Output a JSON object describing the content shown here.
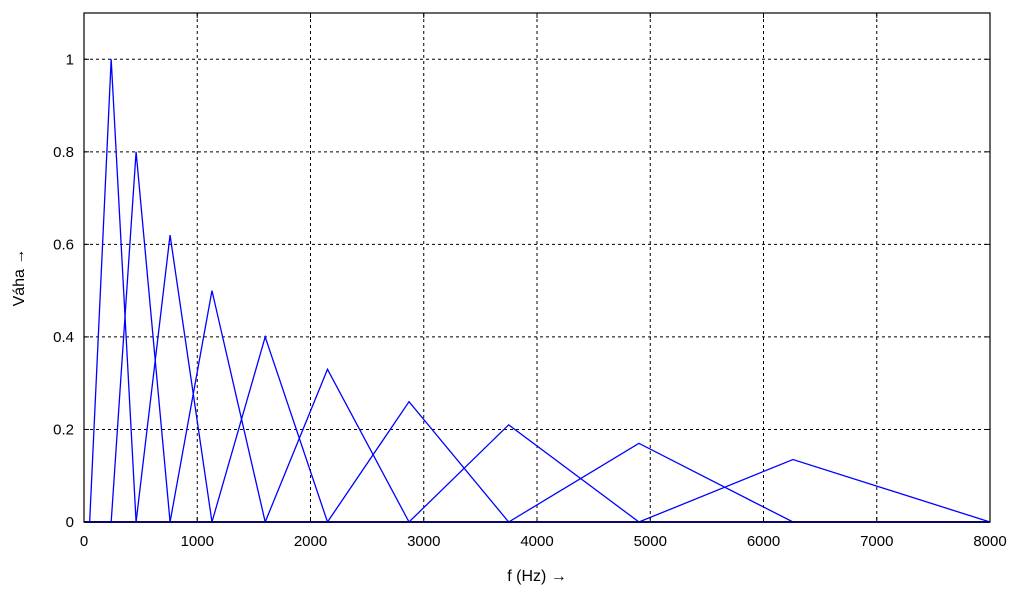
{
  "chart_data": {
    "type": "line",
    "title": "",
    "xlabel": "f (Hz) →",
    "ylabel": "Váha →",
    "xlim": [
      0,
      8000
    ],
    "ylim": [
      0,
      1.1
    ],
    "grid": true,
    "x_ticks": [
      0,
      1000,
      2000,
      3000,
      4000,
      5000,
      6000,
      7000,
      8000
    ],
    "x_tick_labels": [
      "0",
      "1000",
      "2000",
      "3000",
      "4000",
      "5000",
      "6000",
      "7000",
      "8000"
    ],
    "y_ticks": [
      0,
      0.2,
      0.4,
      0.6,
      0.8,
      1
    ],
    "y_tick_labels": [
      "0",
      "0.2",
      "0.4",
      "0.6",
      "0.8",
      "1"
    ],
    "color": "#0000ff",
    "series": [
      {
        "x": [
          0,
          50,
          240,
          460,
          8000
        ],
        "y": [
          0,
          0,
          1.0,
          0,
          0
        ]
      },
      {
        "x": [
          0,
          240,
          460,
          760,
          8000
        ],
        "y": [
          0,
          0,
          0.8,
          0,
          0
        ]
      },
      {
        "x": [
          0,
          460,
          760,
          1130,
          8000
        ],
        "y": [
          0,
          0,
          0.62,
          0,
          0
        ]
      },
      {
        "x": [
          0,
          760,
          1130,
          1600,
          8000
        ],
        "y": [
          0,
          0,
          0.5,
          0,
          0
        ]
      },
      {
        "x": [
          0,
          1130,
          1600,
          2150,
          8000
        ],
        "y": [
          0,
          0,
          0.4,
          0,
          0
        ]
      },
      {
        "x": [
          0,
          1600,
          2150,
          2870,
          8000
        ],
        "y": [
          0,
          0,
          0.33,
          0,
          0
        ]
      },
      {
        "x": [
          0,
          2150,
          2870,
          3750,
          8000
        ],
        "y": [
          0,
          0,
          0.26,
          0,
          0
        ]
      },
      {
        "x": [
          0,
          2870,
          3750,
          4900,
          8000
        ],
        "y": [
          0,
          0,
          0.21,
          0,
          0
        ]
      },
      {
        "x": [
          0,
          3750,
          4900,
          6260,
          8000
        ],
        "y": [
          0,
          0,
          0.17,
          0,
          0
        ]
      },
      {
        "x": [
          0,
          4900,
          6260,
          8000
        ],
        "y": [
          0,
          0,
          0.135,
          0
        ]
      }
    ]
  }
}
